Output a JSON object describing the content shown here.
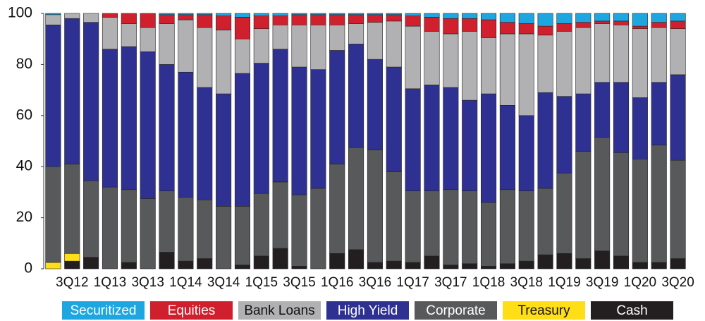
{
  "chart_data": {
    "type": "stacked_bar",
    "categories": [
      null,
      "3Q12",
      null,
      "1Q13",
      null,
      "3Q13",
      null,
      "1Q14",
      null,
      "3Q14",
      null,
      "1Q15",
      null,
      "3Q15",
      null,
      "1Q16",
      null,
      "3Q16",
      null,
      "1Q17",
      null,
      "3Q17",
      null,
      "1Q18",
      null,
      "3Q18",
      null,
      "1Q19",
      null,
      "3Q19",
      null,
      "1Q20",
      null,
      "3Q20"
    ],
    "ylim": [
      0,
      100
    ],
    "yticks": [
      0,
      20,
      40,
      60,
      80,
      100
    ],
    "grid": false,
    "series": [
      {
        "name": "Cash",
        "color": "#231f20",
        "values": [
          0,
          3,
          4.5,
          0,
          2.5,
          0,
          6.5,
          3,
          4,
          0,
          1.5,
          5,
          8,
          1,
          0,
          6,
          7.5,
          2.5,
          3,
          2.5,
          5,
          1.5,
          2,
          1,
          2,
          3,
          5.5,
          6,
          4,
          7,
          5,
          2.5,
          2.5,
          4
        ]
      },
      {
        "name": "Treasury",
        "color": "#ffde17",
        "values": [
          2.5,
          3,
          0,
          0,
          0,
          0,
          0,
          0,
          0,
          0,
          0,
          0,
          0,
          0,
          0,
          0,
          0,
          0,
          0,
          0,
          0,
          0,
          0,
          0,
          0,
          0,
          0,
          0,
          0,
          0,
          0,
          0,
          0,
          0
        ]
      },
      {
        "name": "Corporate",
        "color": "#58595b",
        "values": [
          37.5,
          35,
          30,
          32,
          28.5,
          27.5,
          24,
          25,
          23,
          24.5,
          23,
          24.5,
          26,
          28,
          31.5,
          35,
          40,
          44,
          35,
          28,
          25.5,
          29.5,
          28.5,
          25,
          29,
          27.5,
          26,
          31.5,
          42,
          44.5,
          40.5,
          40.5,
          46,
          38.5
        ]
      },
      {
        "name": "High Yield",
        "color": "#2e3192",
        "values": [
          55.5,
          57,
          62,
          54,
          56,
          57.5,
          49.5,
          49,
          44,
          44,
          52,
          51,
          52,
          50,
          46.5,
          44.5,
          40.5,
          35.5,
          41,
          40,
          41.5,
          40,
          35.5,
          42.5,
          33,
          29.5,
          37.5,
          30,
          22.5,
          21.5,
          27.5,
          24,
          24.5,
          33.5
        ]
      },
      {
        "name": "Bank Loans",
        "color": "#b1b1b3",
        "values": [
          4,
          2,
          3.5,
          12.5,
          9,
          9.5,
          16,
          20.5,
          23.5,
          25,
          13.5,
          13.5,
          9.5,
          16.5,
          17.5,
          10,
          8,
          14.5,
          18,
          24.5,
          21,
          21,
          27,
          22,
          28,
          32,
          22.5,
          25.5,
          26,
          23,
          22.5,
          27,
          21.5,
          18
        ]
      },
      {
        "name": "Equities",
        "color": "#d0202e",
        "values": [
          0,
          0,
          0,
          1.5,
          4,
          5.5,
          3.5,
          2,
          5,
          5.5,
          8.5,
          5,
          3.5,
          4,
          4,
          4,
          3.5,
          3,
          2.5,
          4,
          5.5,
          6,
          5,
          7,
          4.5,
          4,
          3.5,
          3,
          2,
          1,
          1.5,
          1,
          2,
          3
        ]
      },
      {
        "name": "Securitized",
        "color": "#1ea6e0",
        "values": [
          0.5,
          0,
          0,
          0,
          0,
          0,
          0.5,
          0.5,
          0.5,
          1,
          1.5,
          1,
          1,
          0.5,
          0.5,
          0.5,
          0.5,
          0.5,
          0.5,
          1,
          1.5,
          2,
          2,
          2.5,
          3.5,
          4,
          5,
          4,
          3.5,
          3,
          3,
          5,
          3.5,
          3
        ]
      }
    ]
  }
}
